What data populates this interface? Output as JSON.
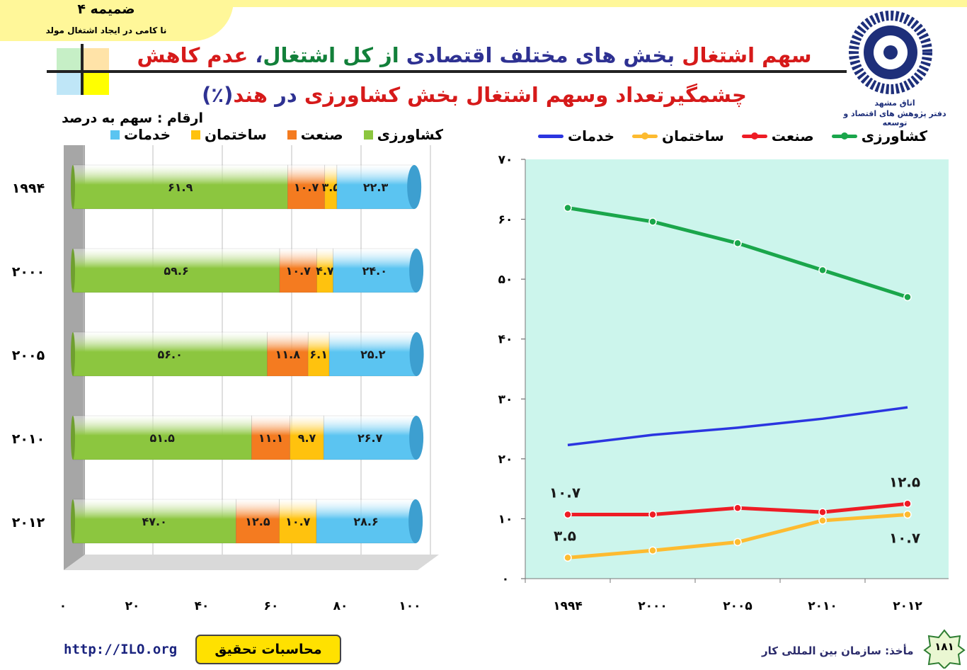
{
  "header": {
    "annex_title": "ضمیمه ۴",
    "annex_subtitle": "نا کامی در ایجاد اشتغال مولد",
    "title_line1": [
      {
        "text": "سهم اشتغال",
        "color": "#d61a1a"
      },
      {
        "text": " بخش های مختلف اقتصادی ",
        "color": "#2e3192"
      },
      {
        "text": "از کل اشتغال",
        "color": "#12803a"
      },
      {
        "text": "، ",
        "color": "#2e3192"
      },
      {
        "text": "عدم کاهش",
        "color": "#d61a1a"
      }
    ],
    "title_line2": [
      {
        "text": "چشمگیر",
        "color": "#d61a1a"
      },
      {
        "text": "تعداد وسهم اشتغال بخش کشاورزی ",
        "color": "#d61a1a"
      },
      {
        "text": "در ",
        "color": "#2e3192"
      },
      {
        "text": "هند",
        "color": "#d61a1a"
      },
      {
        "text": "(٪)",
        "color": "#2e3192"
      }
    ],
    "logo_label1": "اتاق مشهد",
    "logo_label2": "دفتر پژوهش های اقتصاد و توسعه"
  },
  "footer": {
    "url": "http://ILO.org",
    "calc_label": "محاسبات تحقیق",
    "source": "مأخذ: سازمان بین المللی کار",
    "page_number": "۱۸۱"
  },
  "colors": {
    "agriculture": "#8cc63f",
    "industry": "#f47b20",
    "construction": "#ffc20e",
    "services": "#5bc4f1",
    "line_agriculture": "#1aa64b",
    "line_industry": "#ee1c25",
    "line_construction": "#fdbb30",
    "line_services": "#2b35e0",
    "line_bg": "#ccf5ec"
  },
  "chart_data": [
    {
      "type": "bar",
      "orientation": "horizontal",
      "stacked": true,
      "unit_note": "ارقام : سهم به درصد",
      "categories": [
        "۱۹۹۴",
        "۲۰۰۰",
        "۲۰۰۵",
        "۲۰۱۰",
        "۲۰۱۲"
      ],
      "series": [
        {
          "name": "کشاورزی",
          "values": [
            61.9,
            59.6,
            56.0,
            51.5,
            47.0
          ],
          "labels": [
            "۶۱.۹",
            "۵۹.۶",
            "۵۶.۰",
            "۵۱.۵",
            "۴۷.۰"
          ]
        },
        {
          "name": "صنعت",
          "values": [
            10.7,
            10.7,
            11.8,
            11.1,
            12.5
          ],
          "labels": [
            "۱۰.۷",
            "۱۰.۷",
            "۱۱.۸",
            "۱۱.۱",
            "۱۲.۵"
          ]
        },
        {
          "name": "ساختمان",
          "values": [
            3.5,
            4.7,
            6.1,
            9.7,
            10.7
          ],
          "labels": [
            "۳.۵",
            "۴.۷",
            "۶.۱",
            "۹.۷",
            "۱۰.۷"
          ]
        },
        {
          "name": "خدمات",
          "values": [
            22.3,
            24.0,
            25.2,
            26.7,
            28.6
          ],
          "labels": [
            "۲۲.۳",
            "۲۴.۰",
            "۲۵.۲",
            "۲۶.۷",
            "۲۸.۶"
          ]
        }
      ],
      "xlim": [
        0,
        100
      ],
      "xticks": [
        0,
        20,
        40,
        60,
        80,
        100
      ],
      "xtick_labels": [
        "۰",
        "۲۰",
        "۴۰",
        "۶۰",
        "۸۰",
        "۱۰۰"
      ],
      "legend": "top"
    },
    {
      "type": "line",
      "x": [
        "۱۹۹۴",
        "۲۰۰۰",
        "۲۰۰۵",
        "۲۰۱۰",
        "۲۰۱۲"
      ],
      "series": [
        {
          "name": "کشاورزی",
          "values": [
            61.9,
            59.6,
            56.0,
            51.5,
            47.0
          ],
          "markers": true
        },
        {
          "name": "صنعت",
          "values": [
            10.7,
            10.7,
            11.8,
            11.1,
            12.5
          ],
          "markers": true
        },
        {
          "name": "ساختمان",
          "values": [
            3.5,
            4.7,
            6.1,
            9.7,
            10.7
          ],
          "markers": true
        },
        {
          "name": "خدمات",
          "values": [
            22.3,
            24.0,
            25.2,
            26.7,
            28.6
          ],
          "markers": false
        }
      ],
      "ylim": [
        0,
        70
      ],
      "yticks": [
        0,
        10,
        20,
        30,
        40,
        50,
        60,
        70
      ],
      "ytick_labels": [
        "۰",
        "۱۰",
        "۲۰",
        "۳۰",
        "۴۰",
        "۵۰",
        "۶۰",
        "۷۰"
      ],
      "annotations": [
        {
          "series": "صنعت",
          "point": 0,
          "text": "۱۰.۷",
          "position": "above"
        },
        {
          "series": "صنعت",
          "point": 4,
          "text": "۱۲.۵",
          "position": "above"
        },
        {
          "series": "ساختمان",
          "point": 0,
          "text": "۳.۵",
          "position": "above"
        },
        {
          "series": "ساختمان",
          "point": 4,
          "text": "۱۰.۷",
          "position": "below"
        }
      ],
      "legend": "top"
    }
  ]
}
